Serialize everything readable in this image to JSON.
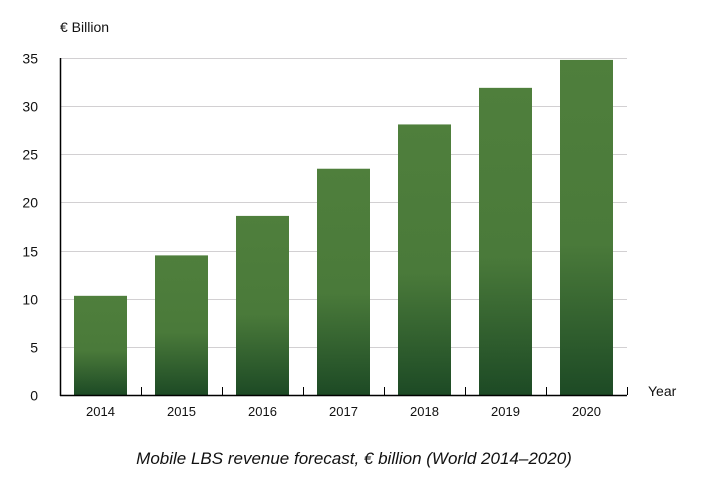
{
  "chart_data": {
    "type": "bar",
    "title": "Mobile LBS revenue forecast, € billion (World 2014–2020)",
    "xlabel": "Year",
    "ylabel": "€ Billion",
    "categories": [
      "2014",
      "2015",
      "2016",
      "2017",
      "2018",
      "2019",
      "2020"
    ],
    "values": [
      10.3,
      14.5,
      18.6,
      23.5,
      28.1,
      31.9,
      34.8
    ],
    "ylim": [
      0,
      35
    ],
    "yticks": [
      0,
      5,
      10,
      15,
      20,
      25,
      30,
      35
    ],
    "grid": true,
    "legend": "none",
    "colors": {
      "bar_top": "#4f7f3c",
      "bar_bottom": "#1d4a25",
      "grid": "#d2d0d2",
      "axis": "#000000"
    }
  }
}
